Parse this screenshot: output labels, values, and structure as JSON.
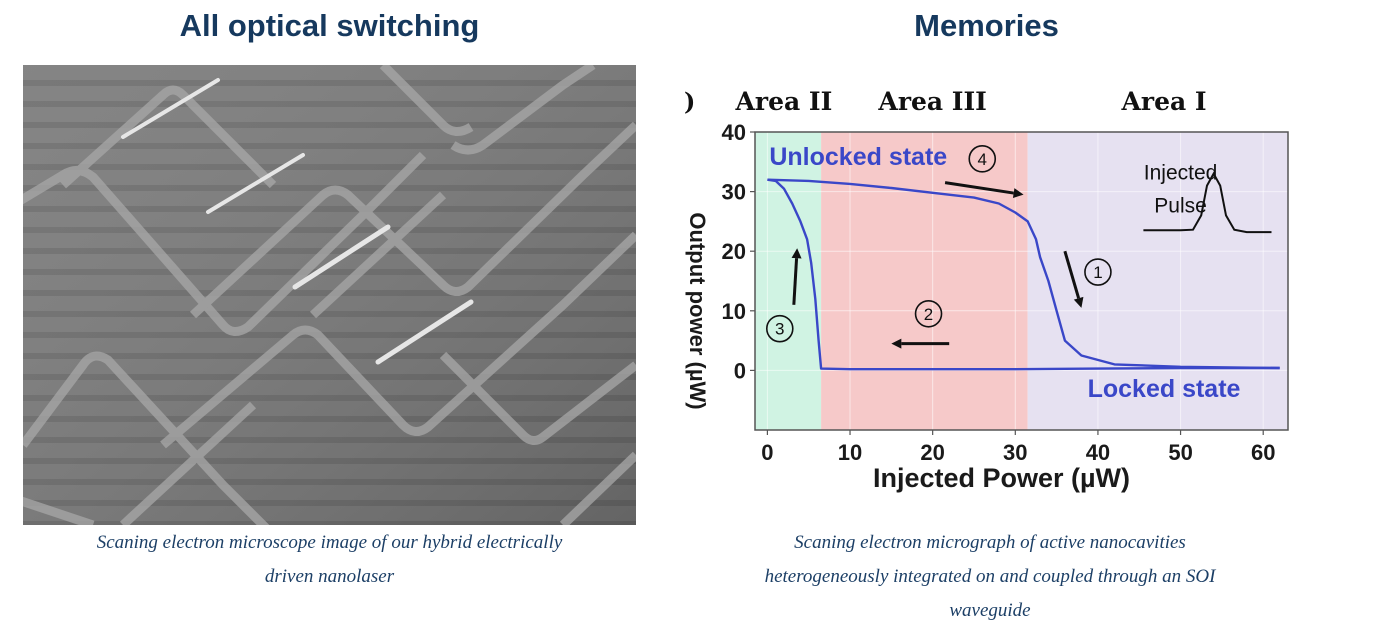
{
  "left": {
    "title": "All optical switching",
    "caption_lines": [
      "Scaning electron microscope image of our hybrid electrically",
      "driven nanolaser"
    ]
  },
  "right": {
    "title": "Memories",
    "caption_lines": [
      "Scaning electron micrograph of active nanocavities",
      "heterogeneously integrated on and coupled through an SOI",
      "waveguide"
    ]
  },
  "chart_data": {
    "type": "line",
    "xlabel": "Injected Power (µW)",
    "ylabel": "Output power (µW)",
    "xlim": [
      -1.5,
      63
    ],
    "ylim": [
      -10,
      40
    ],
    "xticks": [
      0,
      10,
      20,
      30,
      40,
      50,
      60
    ],
    "yticks": [
      0,
      10,
      20,
      30,
      40
    ],
    "grid": true,
    "regions": [
      {
        "label": "Area II",
        "x": [
          -1.5,
          6.5
        ],
        "color": "#d0f3e3"
      },
      {
        "label": "Area III",
        "x": [
          6.5,
          31.5
        ],
        "color": "#f6c9c9"
      },
      {
        "label": "Area I",
        "x": [
          31.5,
          63
        ],
        "color": "#e6e1f1"
      }
    ],
    "leading_mark": ")",
    "series": [
      {
        "color": "#3a47c8",
        "points": [
          [
            0,
            32
          ],
          [
            5,
            31.8
          ],
          [
            10,
            31.3
          ],
          [
            15,
            30.6
          ],
          [
            20,
            29.8
          ],
          [
            25,
            29
          ],
          [
            28,
            28
          ],
          [
            30,
            26.5
          ],
          [
            31.5,
            25
          ],
          [
            32.5,
            22
          ],
          [
            33,
            19
          ],
          [
            34,
            15
          ],
          [
            35,
            10
          ],
          [
            36,
            5
          ],
          [
            38,
            2.5
          ],
          [
            42,
            1
          ],
          [
            50,
            0.6
          ],
          [
            62,
            0.4
          ]
        ]
      },
      {
        "color": "#3a47c8",
        "points": [
          [
            62,
            0.4
          ],
          [
            50,
            0.4
          ],
          [
            40,
            0.3
          ],
          [
            30,
            0.2
          ],
          [
            20,
            0.2
          ],
          [
            10,
            0.2
          ],
          [
            6.5,
            0.3
          ],
          [
            6.2,
            5
          ],
          [
            5.8,
            12
          ],
          [
            5.3,
            18
          ],
          [
            4.8,
            22
          ],
          [
            4,
            25
          ],
          [
            3,
            28
          ],
          [
            2,
            30.5
          ],
          [
            1,
            31.8
          ],
          [
            0,
            32
          ]
        ]
      }
    ],
    "annotations": [
      {
        "text": "Unlocked state",
        "x": 11,
        "y": 34.5,
        "color": "#3a47c8"
      },
      {
        "text": "Locked state",
        "x": 48,
        "y": -4.5,
        "color": "#3a47c8"
      },
      {
        "text": "Injected",
        "x": 50,
        "y": 32
      },
      {
        "text": "Pulse",
        "x": 50,
        "y": 26.5
      },
      {
        "text": "1",
        "x": 40,
        "y": 16.5
      },
      {
        "text": "2",
        "x": 19.5,
        "y": 9.5
      },
      {
        "text": "3",
        "x": 1.5,
        "y": 7
      },
      {
        "text": "4",
        "x": 26,
        "y": 35.5
      }
    ]
  }
}
